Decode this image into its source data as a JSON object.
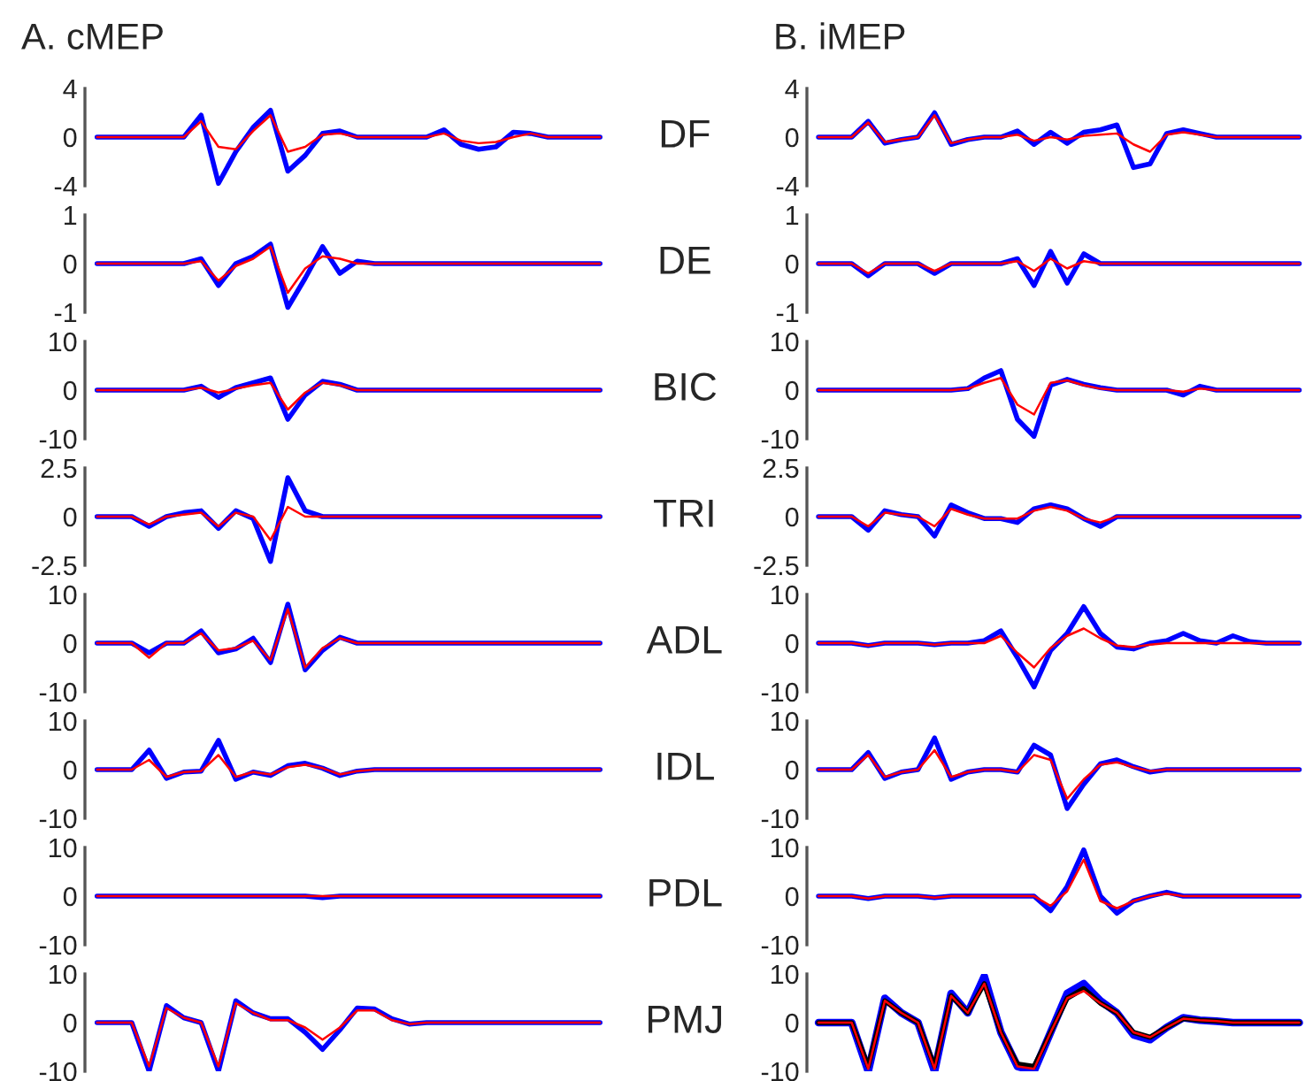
{
  "chart_data": [
    {
      "type": "line",
      "title": "A. cMEP",
      "tick_labels": "y",
      "categories": [
        null,
        null,
        null,
        null,
        null,
        null,
        null,
        null,
        null,
        null,
        null,
        null,
        null,
        null,
        null,
        null,
        null,
        null,
        null,
        null,
        null,
        null,
        null,
        null,
        null,
        null,
        null,
        null,
        null,
        null
      ],
      "ylim": [
        -4,
        4
      ],
      "yticks": [
        -4,
        0,
        4
      ],
      "series": [
        {
          "color": "#0000ff",
          "values": [
            0,
            0,
            0,
            0,
            0,
            0,
            1.8,
            -3.8,
            -1.2,
            0.8,
            2.2,
            -2.8,
            -1.5,
            0.3,
            0.5,
            0,
            0,
            0,
            0,
            0,
            0.6,
            -0.6,
            -1,
            -0.8,
            0.4,
            0.3,
            0,
            0,
            0,
            0
          ]
        },
        {
          "color": "#ff0000",
          "values": [
            0,
            0,
            0,
            0,
            0,
            0,
            1.3,
            -0.8,
            -1,
            0.5,
            1.8,
            -1.2,
            -0.8,
            0.2,
            0.3,
            0,
            0,
            0,
            0,
            0,
            0.3,
            -0.3,
            -0.5,
            -0.4,
            0,
            0.3,
            0,
            0,
            0,
            0
          ]
        }
      ]
    },
    {
      "type": "line",
      "title": "B. iMEP",
      "ylabel": "DF",
      "tick_labels": "y",
      "categories": [
        null,
        null,
        null,
        null,
        null,
        null,
        null,
        null,
        null,
        null,
        null,
        null,
        null,
        null,
        null,
        null,
        null,
        null,
        null,
        null,
        null,
        null,
        null,
        null,
        null,
        null,
        null,
        null,
        null,
        null
      ],
      "ylim": [
        -4,
        4
      ],
      "yticks": [
        -4,
        0,
        4
      ],
      "series": [
        {
          "color": "#0000ff",
          "values": [
            0,
            0,
            0,
            1.3,
            -0.5,
            -0.2,
            0,
            2,
            -0.6,
            -0.2,
            0,
            0,
            0.5,
            -0.6,
            0.4,
            -0.5,
            0.4,
            0.6,
            1,
            -2.5,
            -2.2,
            0.3,
            0.6,
            0.3,
            0,
            0,
            0,
            0,
            0,
            0
          ]
        },
        {
          "color": "#ff0000",
          "values": [
            0,
            0,
            0,
            1.2,
            -0.4,
            -0.2,
            0,
            1.8,
            -0.5,
            -0.2,
            0,
            0,
            0.2,
            -0.3,
            0,
            -0.2,
            0.1,
            0.2,
            0.3,
            -0.6,
            -1.2,
            0.2,
            0.4,
            0.2,
            0,
            0,
            0,
            0,
            0,
            0
          ]
        }
      ]
    },
    {
      "type": "line",
      "tick_labels": "y",
      "categories": [
        null,
        null,
        null,
        null,
        null,
        null,
        null,
        null,
        null,
        null,
        null,
        null,
        null,
        null,
        null,
        null,
        null,
        null,
        null,
        null,
        null,
        null,
        null,
        null,
        null,
        null,
        null,
        null,
        null,
        null
      ],
      "ylim": [
        -1,
        1
      ],
      "yticks": [
        -1,
        0,
        1
      ],
      "series": [
        {
          "color": "#0000ff",
          "values": [
            0,
            0,
            0,
            0,
            0,
            0,
            0.1,
            -0.45,
            0,
            0.15,
            0.4,
            -0.9,
            -0.3,
            0.35,
            -0.2,
            0.05,
            0,
            0,
            0,
            0,
            0,
            0,
            0,
            0,
            0,
            0,
            0,
            0,
            0,
            0
          ]
        },
        {
          "color": "#ff0000",
          "values": [
            0,
            0,
            0,
            0,
            0,
            0,
            0.05,
            -0.35,
            -0.05,
            0.1,
            0.35,
            -0.6,
            -0.1,
            0.15,
            0.1,
            0,
            0,
            0,
            0,
            0,
            0,
            0,
            0,
            0,
            0,
            0,
            0,
            0,
            0,
            0
          ]
        }
      ]
    },
    {
      "type": "line",
      "ylabel": "DE",
      "tick_labels": "y",
      "categories": [
        null,
        null,
        null,
        null,
        null,
        null,
        null,
        null,
        null,
        null,
        null,
        null,
        null,
        null,
        null,
        null,
        null,
        null,
        null,
        null,
        null,
        null,
        null,
        null,
        null,
        null,
        null,
        null,
        null,
        null
      ],
      "ylim": [
        -1,
        1
      ],
      "yticks": [
        -1,
        0,
        1
      ],
      "series": [
        {
          "color": "#0000ff",
          "values": [
            0,
            0,
            0,
            -0.25,
            0,
            0,
            0,
            -0.2,
            0,
            0,
            0,
            0,
            0.1,
            -0.45,
            0.25,
            -0.4,
            0.2,
            0,
            0,
            0,
            0,
            0,
            0,
            0,
            0,
            0,
            0,
            0,
            0,
            0
          ]
        },
        {
          "color": "#ff0000",
          "values": [
            0,
            0,
            0,
            -0.2,
            0,
            0,
            0,
            -0.15,
            0,
            0,
            0,
            0,
            0.05,
            -0.15,
            0.1,
            -0.1,
            0.05,
            0,
            0,
            0,
            0,
            0,
            0,
            0,
            0,
            0,
            0,
            0,
            0,
            0
          ]
        }
      ]
    },
    {
      "type": "line",
      "tick_labels": "y",
      "categories": [
        null,
        null,
        null,
        null,
        null,
        null,
        null,
        null,
        null,
        null,
        null,
        null,
        null,
        null,
        null,
        null,
        null,
        null,
        null,
        null,
        null,
        null,
        null,
        null,
        null,
        null,
        null,
        null,
        null,
        null
      ],
      "ylim": [
        -10,
        10
      ],
      "yticks": [
        -10,
        0,
        10
      ],
      "series": [
        {
          "color": "#0000ff",
          "values": [
            0,
            0,
            0,
            0,
            0,
            0,
            0.8,
            -1.5,
            0.5,
            1.5,
            2.5,
            -6,
            -1,
            1.8,
            1.2,
            0,
            0,
            0,
            0,
            0,
            0,
            0,
            0,
            0,
            0,
            0,
            0,
            0,
            0,
            0
          ]
        },
        {
          "color": "#ff0000",
          "values": [
            0,
            0,
            0,
            0,
            0,
            0,
            0.5,
            -0.5,
            0.3,
            1,
            1.5,
            -4,
            -0.5,
            1.5,
            1,
            0,
            0,
            0,
            0,
            0,
            0,
            0,
            0,
            0,
            0,
            0,
            0,
            0,
            0,
            0
          ]
        }
      ]
    },
    {
      "type": "line",
      "ylabel": "BIC",
      "tick_labels": "y",
      "categories": [
        null,
        null,
        null,
        null,
        null,
        null,
        null,
        null,
        null,
        null,
        null,
        null,
        null,
        null,
        null,
        null,
        null,
        null,
        null,
        null,
        null,
        null,
        null,
        null,
        null,
        null,
        null,
        null,
        null,
        null
      ],
      "ylim": [
        -10,
        10
      ],
      "yticks": [
        -10,
        0,
        10
      ],
      "series": [
        {
          "color": "#0000ff",
          "values": [
            0,
            0,
            0,
            0,
            0,
            0,
            0,
            0,
            0,
            0.3,
            2.5,
            4,
            -6,
            -9.5,
            1,
            2.2,
            1.2,
            0.5,
            0,
            0,
            0,
            0,
            -1,
            0.8,
            0,
            0,
            0,
            0,
            0,
            0
          ]
        },
        {
          "color": "#ff0000",
          "values": [
            0,
            0,
            0,
            0,
            0,
            0,
            0,
            0,
            0,
            0.3,
            1.5,
            2.5,
            -3,
            -5,
            1.5,
            2,
            1,
            0.3,
            0,
            0,
            0,
            0,
            -0.3,
            0.3,
            0,
            0,
            0,
            0,
            0,
            0
          ]
        }
      ]
    },
    {
      "type": "line",
      "tick_labels": "y",
      "categories": [
        null,
        null,
        null,
        null,
        null,
        null,
        null,
        null,
        null,
        null,
        null,
        null,
        null,
        null,
        null,
        null,
        null,
        null,
        null,
        null,
        null,
        null,
        null,
        null,
        null,
        null,
        null,
        null,
        null,
        null
      ],
      "ylim": [
        -2.5,
        2.5
      ],
      "yticks": [
        -2.5,
        0,
        2.5
      ],
      "series": [
        {
          "color": "#0000ff",
          "values": [
            0,
            0,
            0,
            -0.5,
            0,
            0.2,
            0.3,
            -0.6,
            0.3,
            -0.1,
            -2.3,
            2,
            0.3,
            0,
            0,
            0,
            0,
            0,
            0,
            0,
            0,
            0,
            0,
            0,
            0,
            0,
            0,
            0,
            0,
            0
          ]
        },
        {
          "color": "#ff0000",
          "values": [
            0,
            0,
            0,
            -0.4,
            0,
            0.1,
            0.2,
            -0.5,
            0.2,
            0,
            -1.2,
            0.5,
            0,
            0,
            0,
            0,
            0,
            0,
            0,
            0,
            0,
            0,
            0,
            0,
            0,
            0,
            0,
            0,
            0,
            0
          ]
        }
      ]
    },
    {
      "type": "line",
      "ylabel": "TRI",
      "tick_labels": "y",
      "categories": [
        null,
        null,
        null,
        null,
        null,
        null,
        null,
        null,
        null,
        null,
        null,
        null,
        null,
        null,
        null,
        null,
        null,
        null,
        null,
        null,
        null,
        null,
        null,
        null,
        null,
        null,
        null,
        null,
        null,
        null
      ],
      "ylim": [
        -2.5,
        2.5
      ],
      "yticks": [
        -2.5,
        0,
        2.5
      ],
      "series": [
        {
          "color": "#0000ff",
          "values": [
            0,
            0,
            0,
            -0.7,
            0.3,
            0.1,
            0,
            -1,
            0.6,
            0.2,
            -0.1,
            -0.1,
            -0.3,
            0.4,
            0.6,
            0.4,
            -0.1,
            -0.5,
            0,
            0,
            0,
            0,
            0,
            0,
            0,
            0,
            0,
            0,
            0,
            0
          ]
        },
        {
          "color": "#ff0000",
          "values": [
            0,
            0,
            0,
            -0.5,
            0.2,
            0.1,
            0,
            -0.5,
            0.4,
            0.1,
            -0.1,
            -0.1,
            -0.1,
            0.3,
            0.5,
            0.3,
            -0.1,
            -0.3,
            0,
            0,
            0,
            0,
            0,
            0,
            0,
            0,
            0,
            0,
            0,
            0
          ]
        }
      ]
    },
    {
      "type": "line",
      "tick_labels": "y",
      "categories": [
        null,
        null,
        null,
        null,
        null,
        null,
        null,
        null,
        null,
        null,
        null,
        null,
        null,
        null,
        null,
        null,
        null,
        null,
        null,
        null,
        null,
        null,
        null,
        null,
        null,
        null,
        null,
        null,
        null,
        null
      ],
      "ylim": [
        -10,
        10
      ],
      "yticks": [
        -10,
        0,
        10
      ],
      "series": [
        {
          "color": "#0000ff",
          "values": [
            0,
            0,
            0,
            -2,
            0,
            0,
            2.5,
            -2,
            -1.2,
            1,
            -4,
            8,
            -5.5,
            -1.5,
            1.2,
            0,
            0,
            0,
            0,
            0,
            0,
            0,
            0,
            0,
            0,
            0,
            0,
            0,
            0,
            0
          ]
        },
        {
          "color": "#ff0000",
          "values": [
            0,
            0,
            0,
            -3,
            0,
            0,
            2,
            -1.5,
            -1,
            0.5,
            -3.5,
            7,
            -5,
            -1,
            1,
            0,
            0,
            0,
            0,
            0,
            0,
            0,
            0,
            0,
            0,
            0,
            0,
            0,
            0,
            0
          ]
        }
      ]
    },
    {
      "type": "line",
      "ylabel": "ADL",
      "tick_labels": "y",
      "categories": [
        null,
        null,
        null,
        null,
        null,
        null,
        null,
        null,
        null,
        null,
        null,
        null,
        null,
        null,
        null,
        null,
        null,
        null,
        null,
        null,
        null,
        null,
        null,
        null,
        null,
        null,
        null,
        null,
        null,
        null
      ],
      "ylim": [
        -10,
        10
      ],
      "yticks": [
        -10,
        0,
        10
      ],
      "series": [
        {
          "color": "#0000ff",
          "values": [
            0,
            0,
            0,
            -0.5,
            0,
            0,
            0,
            -0.3,
            0,
            0,
            0.5,
            2.5,
            -3,
            -9,
            -1.5,
            2,
            7.5,
            2,
            -0.8,
            -1.2,
            0,
            0.5,
            2,
            0.5,
            0,
            1.5,
            0.3,
            0,
            0,
            0
          ]
        },
        {
          "color": "#ff0000",
          "values": [
            0,
            0,
            0,
            -0.5,
            0,
            0,
            0,
            -0.3,
            0,
            0,
            0,
            1.5,
            -2,
            -5,
            -1,
            1.5,
            3,
            1,
            -0.5,
            -0.8,
            -0.3,
            0,
            0,
            0,
            0,
            0,
            0,
            0,
            0,
            0
          ]
        }
      ]
    },
    {
      "type": "line",
      "tick_labels": "y",
      "categories": [
        null,
        null,
        null,
        null,
        null,
        null,
        null,
        null,
        null,
        null,
        null,
        null,
        null,
        null,
        null,
        null,
        null,
        null,
        null,
        null,
        null,
        null,
        null,
        null,
        null,
        null,
        null,
        null,
        null,
        null
      ],
      "ylim": [
        -10,
        10
      ],
      "yticks": [
        -10,
        0,
        10
      ],
      "series": [
        {
          "color": "#0000ff",
          "values": [
            0,
            0,
            0,
            4,
            -1.8,
            -0.5,
            -0.3,
            6,
            -2,
            -0.5,
            -1.2,
            0.8,
            1.3,
            0.3,
            -1.2,
            -0.3,
            0,
            0,
            0,
            0,
            0,
            0,
            0,
            0,
            0,
            0,
            0,
            0,
            0,
            0
          ]
        },
        {
          "color": "#ff0000",
          "values": [
            0,
            0,
            0,
            2,
            -1.5,
            -0.5,
            -0.3,
            3,
            -1.5,
            -0.5,
            -1,
            0.5,
            1,
            0.3,
            -1,
            -0.3,
            0,
            0,
            0,
            0,
            0,
            0,
            0,
            0,
            0,
            0,
            0,
            0,
            0,
            0
          ]
        }
      ]
    },
    {
      "type": "line",
      "ylabel": "IDL",
      "tick_labels": "y",
      "categories": [
        null,
        null,
        null,
        null,
        null,
        null,
        null,
        null,
        null,
        null,
        null,
        null,
        null,
        null,
        null,
        null,
        null,
        null,
        null,
        null,
        null,
        null,
        null,
        null,
        null,
        null,
        null,
        null,
        null,
        null
      ],
      "ylim": [
        -10,
        10
      ],
      "yticks": [
        -10,
        0,
        10
      ],
      "series": [
        {
          "color": "#0000ff",
          "values": [
            0,
            0,
            0,
            3.5,
            -1.8,
            -0.5,
            0,
            6.5,
            -2,
            -0.5,
            0,
            0,
            -0.5,
            5,
            3,
            -8,
            -3,
            1.2,
            2,
            0.6,
            -0.5,
            0,
            0,
            0,
            0,
            0,
            0,
            0,
            0,
            0
          ]
        },
        {
          "color": "#ff0000",
          "values": [
            0,
            0,
            0,
            3,
            -1.5,
            -0.5,
            0,
            4,
            -1.5,
            -0.5,
            0,
            0,
            -0.5,
            3,
            2,
            -6,
            -2,
            1,
            1.5,
            0.5,
            -0.3,
            0,
            0,
            0,
            0,
            0,
            0,
            0,
            0,
            0
          ]
        }
      ]
    },
    {
      "type": "line",
      "tick_labels": "y",
      "categories": [
        null,
        null,
        null,
        null,
        null,
        null,
        null,
        null,
        null,
        null,
        null,
        null,
        null,
        null,
        null,
        null,
        null,
        null,
        null,
        null,
        null,
        null,
        null,
        null,
        null,
        null,
        null,
        null,
        null,
        null
      ],
      "ylim": [
        -10,
        10
      ],
      "yticks": [
        -10,
        0,
        10
      ],
      "series": [
        {
          "color": "#0000ff",
          "values": [
            0,
            0,
            0,
            0,
            0,
            0,
            0,
            0,
            0,
            0,
            0,
            0,
            0,
            -0.3,
            0,
            0,
            0,
            0,
            0,
            0,
            0,
            0,
            0,
            0,
            0,
            0,
            0,
            0,
            0,
            0
          ]
        },
        {
          "color": "#ff0000",
          "values": [
            0,
            0,
            0,
            0,
            0,
            0,
            0,
            0,
            0,
            0,
            0,
            0,
            0,
            0,
            0,
            0,
            0,
            0,
            0,
            0,
            0,
            0,
            0,
            0,
            0,
            0,
            0,
            0,
            0,
            0
          ]
        }
      ]
    },
    {
      "type": "line",
      "ylabel": "PDL",
      "tick_labels": "y",
      "categories": [
        null,
        null,
        null,
        null,
        null,
        null,
        null,
        null,
        null,
        null,
        null,
        null,
        null,
        null,
        null,
        null,
        null,
        null,
        null,
        null,
        null,
        null,
        null,
        null,
        null,
        null,
        null,
        null,
        null,
        null
      ],
      "ylim": [
        -10,
        10
      ],
      "yticks": [
        -10,
        0,
        10
      ],
      "series": [
        {
          "color": "#0000ff",
          "values": [
            0,
            0,
            0,
            -0.5,
            0,
            0,
            0,
            -0.3,
            0,
            0,
            0,
            0,
            0,
            0,
            -3,
            2,
            9.5,
            0,
            -3.5,
            -1,
            0,
            0.8,
            0,
            0,
            0,
            0,
            0,
            0,
            0,
            0
          ]
        },
        {
          "color": "#ff0000",
          "values": [
            0,
            0,
            0,
            -0.5,
            0,
            0,
            0,
            -0.3,
            0,
            0,
            0,
            0,
            0,
            0,
            -2,
            1,
            7.5,
            -1,
            -2.5,
            -1,
            0,
            0.5,
            0,
            0,
            0,
            0,
            0,
            0,
            0,
            0
          ]
        }
      ]
    },
    {
      "type": "line",
      "tick_labels": "y",
      "categories": [
        null,
        null,
        null,
        null,
        null,
        null,
        null,
        null,
        null,
        null,
        null,
        null,
        null,
        null,
        null,
        null,
        null,
        null,
        null,
        null,
        null,
        null,
        null,
        null,
        null,
        null,
        null,
        null,
        null,
        null
      ],
      "ylim": [
        -10,
        10
      ],
      "yticks": [
        -10,
        0,
        10
      ],
      "series": [
        {
          "color": "#0000ff",
          "values": [
            0,
            0,
            0,
            -10,
            3.5,
            1,
            0,
            -10,
            4.5,
            2,
            0.8,
            0.8,
            -2,
            -5.5,
            -1.5,
            3,
            2.8,
            0.8,
            -0.3,
            0,
            0,
            0,
            0,
            0,
            0,
            0,
            0,
            0,
            0,
            0
          ]
        },
        {
          "color": "#ff0000",
          "values": [
            0,
            0,
            0,
            -9,
            3,
            1,
            0,
            -9,
            4,
            2,
            0.5,
            0.5,
            -1,
            -3.5,
            -1,
            2.5,
            2.5,
            0.5,
            -0.3,
            0,
            0,
            0,
            0,
            0,
            0,
            0,
            0,
            0,
            0,
            0
          ]
        }
      ]
    },
    {
      "type": "line",
      "ylabel": "PMJ",
      "tick_labels": "y",
      "categories": [
        null,
        null,
        null,
        null,
        null,
        null,
        null,
        null,
        null,
        null,
        null,
        null,
        null,
        null,
        null,
        null,
        null,
        null,
        null,
        null,
        null,
        null,
        null,
        null,
        null,
        null,
        null,
        null,
        null,
        null
      ],
      "ylim": [
        -10,
        10
      ],
      "yticks": [
        -10,
        0,
        10
      ],
      "series": [
        {
          "color": "#0000ff",
          "values": [
            0,
            0,
            0,
            -10,
            5,
            2,
            0,
            -10,
            6,
            2,
            9.5,
            -2,
            -9,
            -10,
            -2,
            6,
            8,
            4.5,
            2,
            -2.5,
            -3.5,
            -1,
            1,
            0.5,
            0.3,
            0,
            0,
            0,
            0,
            0
          ]
        },
        {
          "color": "#000000",
          "values": [
            0,
            0,
            0,
            -9,
            4.5,
            2,
            0,
            -9,
            5.5,
            2,
            8,
            -2,
            -8.5,
            -9,
            -2,
            5,
            7,
            4,
            2,
            -2,
            -3,
            -1,
            0.8,
            0.5,
            0.3,
            0,
            0,
            0,
            0,
            0
          ]
        },
        {
          "color": "#ff0000",
          "values": [
            0,
            0,
            0,
            -9.5,
            4.5,
            2,
            0,
            -9.5,
            5.5,
            2,
            8,
            -2,
            -9,
            -9.5,
            -2,
            5,
            6.5,
            4,
            2,
            -2,
            -3,
            -1,
            0.8,
            0.5,
            0.3,
            0,
            0,
            0,
            0,
            0
          ]
        }
      ]
    }
  ]
}
